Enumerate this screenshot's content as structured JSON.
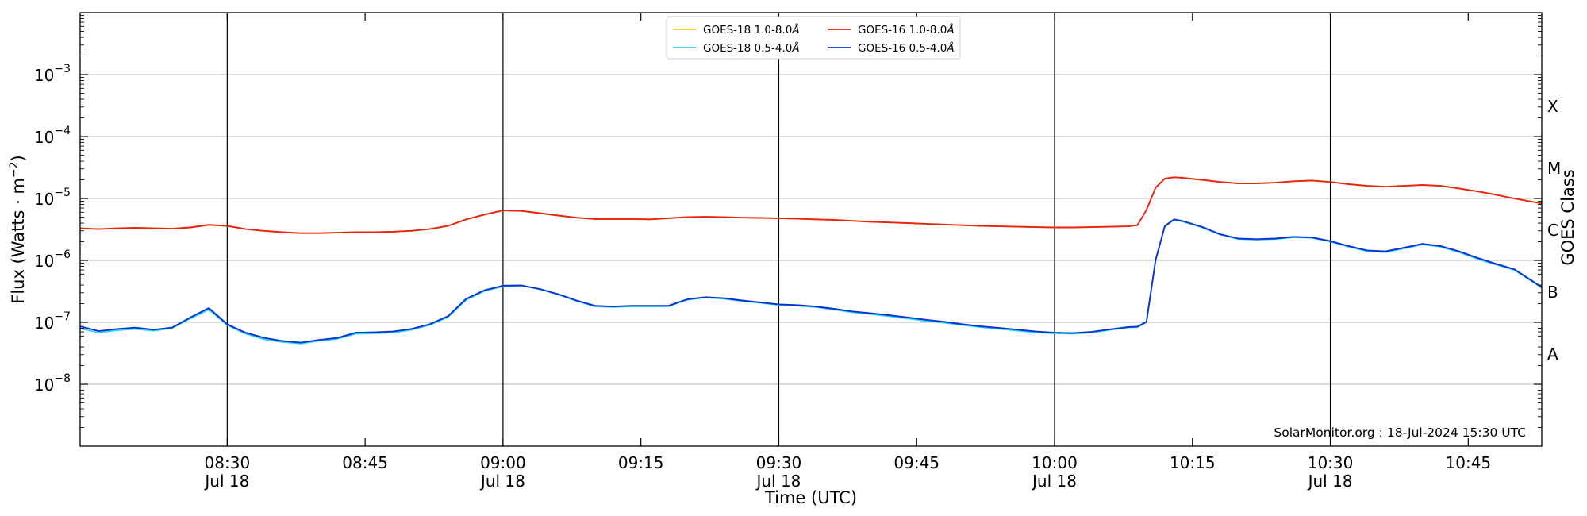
{
  "chart_data": {
    "type": "line",
    "title": "",
    "xlabel": "Time (UTC)",
    "ylabel_main": "Flux (Watts · m",
    "ylabel_sup": "−2",
    "ylabel_close": ")",
    "y2label": "GOES Class",
    "x_range": [
      "08:14",
      "10:53"
    ],
    "y_scale": "log",
    "ylim": [
      1e-09,
      0.01
    ],
    "grid": true,
    "legend_position": "top-center",
    "annotation": "SolarMonitor.org : 18-Jul-2024 15:30 UTC",
    "yticks": [
      {
        "value": 1e-08,
        "base": "10",
        "exp": "−8"
      },
      {
        "value": 1e-07,
        "base": "10",
        "exp": "−7"
      },
      {
        "value": 1e-06,
        "base": "10",
        "exp": "−6"
      },
      {
        "value": 1e-05,
        "base": "10",
        "exp": "−5"
      },
      {
        "value": 0.0001,
        "base": "10",
        "exp": "−4"
      },
      {
        "value": 0.001,
        "base": "10",
        "exp": "−3"
      }
    ],
    "xticks": [
      {
        "time": "08:30",
        "label": "08:30",
        "date": "Jul 18",
        "vline": true
      },
      {
        "time": "08:45",
        "label": "08:45",
        "date": "",
        "vline": false
      },
      {
        "time": "09:00",
        "label": "09:00",
        "date": "Jul 18",
        "vline": true
      },
      {
        "time": "09:15",
        "label": "09:15",
        "date": "",
        "vline": false
      },
      {
        "time": "09:30",
        "label": "09:30",
        "date": "Jul 18",
        "vline": true
      },
      {
        "time": "09:45",
        "label": "09:45",
        "date": "",
        "vline": false
      },
      {
        "time": "10:00",
        "label": "10:00",
        "date": "Jul 18",
        "vline": true
      },
      {
        "time": "10:15",
        "label": "10:15",
        "date": "",
        "vline": false
      },
      {
        "time": "10:30",
        "label": "10:30",
        "date": "Jul 18",
        "vline": true
      },
      {
        "time": "10:45",
        "label": "10:45",
        "date": "",
        "vline": false
      }
    ],
    "goes_classes": [
      {
        "label": "A",
        "value": 3.16e-08
      },
      {
        "label": "B",
        "value": 3.16e-07
      },
      {
        "label": "C",
        "value": 3.16e-06
      },
      {
        "label": "M",
        "value": 3.16e-05
      },
      {
        "label": "X",
        "value": 0.000316
      }
    ],
    "series": [
      {
        "name": "GOES-18 1.0-8.0",
        "color": "#ffd000",
        "width": 1.6,
        "x": [
          "08:14",
          "08:16",
          "08:18",
          "08:20",
          "08:22",
          "08:24",
          "08:26",
          "08:28",
          "08:30",
          "08:32",
          "08:34",
          "08:36",
          "08:38",
          "08:40",
          "08:42",
          "08:44",
          "08:46",
          "08:48",
          "08:50",
          "08:52",
          "08:54",
          "08:56",
          "08:58",
          "09:00",
          "09:02",
          "09:04",
          "09:06",
          "09:08",
          "09:10",
          "09:12",
          "09:14",
          "09:16",
          "09:18",
          "09:20",
          "09:22",
          "09:24",
          "09:26",
          "09:28",
          "09:30",
          "09:32",
          "09:34",
          "09:36",
          "09:38",
          "09:40",
          "09:42",
          "09:44",
          "09:46",
          "09:48",
          "09:50",
          "09:52",
          "09:54",
          "09:56",
          "09:58",
          "10:00",
          "10:02",
          "10:04",
          "10:06",
          "10:08",
          "10:09",
          "10:10",
          "10:11",
          "10:12",
          "10:13",
          "10:14",
          "10:16",
          "10:18",
          "10:20",
          "10:22",
          "10:24",
          "10:26",
          "10:28",
          "10:30",
          "10:32",
          "10:34",
          "10:36",
          "10:38",
          "10:40",
          "10:42",
          "10:44",
          "10:46",
          "10:48",
          "10:50",
          "10:53"
        ],
        "y": [
          3.3e-06,
          3.2e-06,
          3.3e-06,
          3.35e-06,
          3.3e-06,
          3.25e-06,
          3.4e-06,
          3.7e-06,
          3.6e-06,
          3.2e-06,
          3e-06,
          2.85e-06,
          2.75e-06,
          2.75e-06,
          2.8e-06,
          2.85e-06,
          2.85e-06,
          2.9e-06,
          3e-06,
          3.2e-06,
          3.6e-06,
          4.6e-06,
          5.5e-06,
          6.4e-06,
          6.3e-06,
          5.8e-06,
          5.3e-06,
          4.9e-06,
          4.65e-06,
          4.65e-06,
          4.65e-06,
          4.6e-06,
          4.8e-06,
          5e-06,
          5.05e-06,
          5e-06,
          4.9e-06,
          4.85e-06,
          4.8e-06,
          4.7e-06,
          4.6e-06,
          4.5e-06,
          4.35e-06,
          4.2e-06,
          4.1e-06,
          4e-06,
          3.9e-06,
          3.8e-06,
          3.7e-06,
          3.6e-06,
          3.55e-06,
          3.5e-06,
          3.45e-06,
          3.4e-06,
          3.4e-06,
          3.45e-06,
          3.5e-06,
          3.55e-06,
          3.7e-06,
          6.5e-06,
          1.5e-05,
          2.1e-05,
          2.2e-05,
          2.15e-05,
          2e-05,
          1.85e-05,
          1.75e-05,
          1.75e-05,
          1.8e-05,
          1.9e-05,
          1.95e-05,
          1.85e-05,
          1.7e-05,
          1.6e-05,
          1.55e-05,
          1.6e-05,
          1.65e-05,
          1.6e-05,
          1.45e-05,
          1.3e-05,
          1.15e-05,
          1e-05,
          8.3e-06
        ]
      },
      {
        "name": "GOES-16 1.0-8.0",
        "color": "#e8220c",
        "width": 1.9,
        "x": [
          "08:14",
          "08:16",
          "08:18",
          "08:20",
          "08:22",
          "08:24",
          "08:26",
          "08:28",
          "08:30",
          "08:32",
          "08:34",
          "08:36",
          "08:38",
          "08:40",
          "08:42",
          "08:44",
          "08:46",
          "08:48",
          "08:50",
          "08:52",
          "08:54",
          "08:56",
          "08:58",
          "09:00",
          "09:02",
          "09:04",
          "09:06",
          "09:08",
          "09:10",
          "09:12",
          "09:14",
          "09:16",
          "09:18",
          "09:20",
          "09:22",
          "09:24",
          "09:26",
          "09:28",
          "09:30",
          "09:32",
          "09:34",
          "09:36",
          "09:38",
          "09:40",
          "09:42",
          "09:44",
          "09:46",
          "09:48",
          "09:50",
          "09:52",
          "09:54",
          "09:56",
          "09:58",
          "10:00",
          "10:02",
          "10:04",
          "10:06",
          "10:08",
          "10:09",
          "10:10",
          "10:11",
          "10:12",
          "10:13",
          "10:14",
          "10:16",
          "10:18",
          "10:20",
          "10:22",
          "10:24",
          "10:26",
          "10:28",
          "10:30",
          "10:32",
          "10:34",
          "10:36",
          "10:38",
          "10:40",
          "10:42",
          "10:44",
          "10:46",
          "10:48",
          "10:50",
          "10:53"
        ],
        "y": [
          3.3e-06,
          3.2e-06,
          3.3e-06,
          3.35e-06,
          3.3e-06,
          3.25e-06,
          3.4e-06,
          3.75e-06,
          3.6e-06,
          3.2e-06,
          3e-06,
          2.85e-06,
          2.75e-06,
          2.75e-06,
          2.8e-06,
          2.85e-06,
          2.85e-06,
          2.9e-06,
          3e-06,
          3.2e-06,
          3.6e-06,
          4.6e-06,
          5.5e-06,
          6.4e-06,
          6.3e-06,
          5.8e-06,
          5.3e-06,
          4.9e-06,
          4.65e-06,
          4.65e-06,
          4.65e-06,
          4.6e-06,
          4.8e-06,
          5e-06,
          5.05e-06,
          5e-06,
          4.9e-06,
          4.85e-06,
          4.8e-06,
          4.7e-06,
          4.6e-06,
          4.5e-06,
          4.35e-06,
          4.2e-06,
          4.1e-06,
          4e-06,
          3.9e-06,
          3.8e-06,
          3.7e-06,
          3.6e-06,
          3.55e-06,
          3.5e-06,
          3.45e-06,
          3.4e-06,
          3.4e-06,
          3.45e-06,
          3.5e-06,
          3.55e-06,
          3.7e-06,
          6.5e-06,
          1.5e-05,
          2.1e-05,
          2.2e-05,
          2.15e-05,
          2e-05,
          1.85e-05,
          1.75e-05,
          1.75e-05,
          1.8e-05,
          1.9e-05,
          1.95e-05,
          1.85e-05,
          1.7e-05,
          1.6e-05,
          1.55e-05,
          1.6e-05,
          1.65e-05,
          1.6e-05,
          1.45e-05,
          1.3e-05,
          1.15e-05,
          1e-05,
          8.3e-06
        ]
      },
      {
        "name": "GOES-18 0.5-4.0",
        "color": "#22d8f0",
        "width": 1.6,
        "x": [
          "08:14",
          "08:16",
          "08:18",
          "08:20",
          "08:22",
          "08:24",
          "08:26",
          "08:28",
          "08:30",
          "08:32",
          "08:34",
          "08:36",
          "08:38",
          "08:40",
          "08:42",
          "08:44",
          "08:46",
          "08:48",
          "08:50",
          "08:52",
          "08:54",
          "08:56",
          "08:58",
          "09:00",
          "09:02",
          "09:04",
          "09:06",
          "09:08",
          "09:10",
          "09:12",
          "09:14",
          "09:16",
          "09:18",
          "09:20",
          "09:22",
          "09:24",
          "09:26",
          "09:28",
          "09:30",
          "09:32",
          "09:34",
          "09:36",
          "09:38",
          "09:40",
          "09:42",
          "09:44",
          "09:46",
          "09:48",
          "09:50",
          "09:52",
          "09:54",
          "09:56",
          "09:58",
          "10:00",
          "10:02",
          "10:04",
          "10:06",
          "10:08",
          "10:09",
          "10:10",
          "10:11",
          "10:12",
          "10:13",
          "10:14",
          "10:16",
          "10:18",
          "10:20",
          "10:22",
          "10:24",
          "10:26",
          "10:28",
          "10:30",
          "10:32",
          "10:34",
          "10:36",
          "10:38",
          "10:40",
          "10:42",
          "10:44",
          "10:46",
          "10:48",
          "10:50",
          "10:53"
        ],
        "y": [
          8e-08,
          6.8e-08,
          7.4e-08,
          7.8e-08,
          7.3e-08,
          8e-08,
          1.15e-07,
          1.6e-07,
          9e-08,
          6.5e-08,
          5.3e-08,
          4.8e-08,
          4.5e-08,
          5e-08,
          5.4e-08,
          6.5e-08,
          6.6e-08,
          6.8e-08,
          7.5e-08,
          9e-08,
          1.2e-07,
          2.3e-07,
          3.2e-07,
          3.8e-07,
          3.9e-07,
          3.4e-07,
          2.8e-07,
          2.2e-07,
          1.8e-07,
          1.75e-07,
          1.8e-07,
          1.8e-07,
          1.8e-07,
          2.3e-07,
          2.5e-07,
          2.4e-07,
          2.2e-07,
          2.05e-07,
          1.9e-07,
          1.85e-07,
          1.75e-07,
          1.6e-07,
          1.45e-07,
          1.35e-07,
          1.25e-07,
          1.15e-07,
          1.05e-07,
          9.8e-08,
          9e-08,
          8.3e-08,
          7.8e-08,
          7.3e-08,
          6.8e-08,
          6.6e-08,
          6.5e-08,
          6.8e-08,
          7.5e-08,
          8.2e-08,
          8.3e-08,
          1e-07,
          1e-06,
          3.5e-06,
          4.5e-06,
          4.2e-06,
          3.4e-06,
          2.6e-06,
          2.2e-06,
          2.15e-06,
          2.2e-06,
          2.35e-06,
          2.3e-06,
          2e-06,
          1.65e-06,
          1.4e-06,
          1.35e-06,
          1.55e-06,
          1.8e-06,
          1.65e-06,
          1.35e-06,
          1.05e-06,
          8.5e-07,
          7e-07,
          3.6e-07
        ]
      },
      {
        "name": "GOES-16 0.5-4.0",
        "color": "#0a32d2",
        "width": 1.9,
        "x": [
          "08:14",
          "08:16",
          "08:18",
          "08:20",
          "08:22",
          "08:24",
          "08:26",
          "08:28",
          "08:30",
          "08:32",
          "08:34",
          "08:36",
          "08:38",
          "08:40",
          "08:42",
          "08:44",
          "08:46",
          "08:48",
          "08:50",
          "08:52",
          "08:54",
          "08:56",
          "08:58",
          "09:00",
          "09:02",
          "09:04",
          "09:06",
          "09:08",
          "09:10",
          "09:12",
          "09:14",
          "09:16",
          "09:18",
          "09:20",
          "09:22",
          "09:24",
          "09:26",
          "09:28",
          "09:30",
          "09:32",
          "09:34",
          "09:36",
          "09:38",
          "09:40",
          "09:42",
          "09:44",
          "09:46",
          "09:48",
          "09:50",
          "09:52",
          "09:54",
          "09:56",
          "09:58",
          "10:00",
          "10:02",
          "10:04",
          "10:06",
          "10:08",
          "10:09",
          "10:10",
          "10:11",
          "10:12",
          "10:13",
          "10:14",
          "10:16",
          "10:18",
          "10:20",
          "10:22",
          "10:24",
          "10:26",
          "10:28",
          "10:30",
          "10:32",
          "10:34",
          "10:36",
          "10:38",
          "10:40",
          "10:42",
          "10:44",
          "10:46",
          "10:48",
          "10:50",
          "10:53"
        ],
        "y": [
          8.6e-08,
          7.2e-08,
          7.8e-08,
          8.2e-08,
          7.6e-08,
          8.2e-08,
          1.2e-07,
          1.7e-07,
          9.3e-08,
          6.8e-08,
          5.6e-08,
          5e-08,
          4.7e-08,
          5.2e-08,
          5.6e-08,
          6.8e-08,
          6.9e-08,
          7.1e-08,
          7.8e-08,
          9.3e-08,
          1.25e-07,
          2.4e-07,
          3.3e-07,
          3.9e-07,
          3.95e-07,
          3.45e-07,
          2.85e-07,
          2.25e-07,
          1.85e-07,
          1.8e-07,
          1.85e-07,
          1.85e-07,
          1.85e-07,
          2.35e-07,
          2.55e-07,
          2.45e-07,
          2.25e-07,
          2.1e-07,
          1.95e-07,
          1.9e-07,
          1.8e-07,
          1.65e-07,
          1.5e-07,
          1.4e-07,
          1.3e-07,
          1.2e-07,
          1.1e-07,
          1.02e-07,
          9.3e-08,
          8.6e-08,
          8.1e-08,
          7.6e-08,
          7.1e-08,
          6.8e-08,
          6.7e-08,
          7e-08,
          7.7e-08,
          8.4e-08,
          8.5e-08,
          1.02e-07,
          1.02e-06,
          3.6e-06,
          4.6e-06,
          4.3e-06,
          3.5e-06,
          2.65e-06,
          2.25e-06,
          2.2e-06,
          2.25e-06,
          2.4e-06,
          2.35e-06,
          2.05e-06,
          1.7e-06,
          1.45e-06,
          1.4e-06,
          1.6e-06,
          1.85e-06,
          1.7e-06,
          1.4e-06,
          1.1e-06,
          8.8e-07,
          7.2e-07,
          3.7e-07
        ]
      }
    ],
    "legend_order": [
      0,
      2,
      1,
      3
    ]
  }
}
